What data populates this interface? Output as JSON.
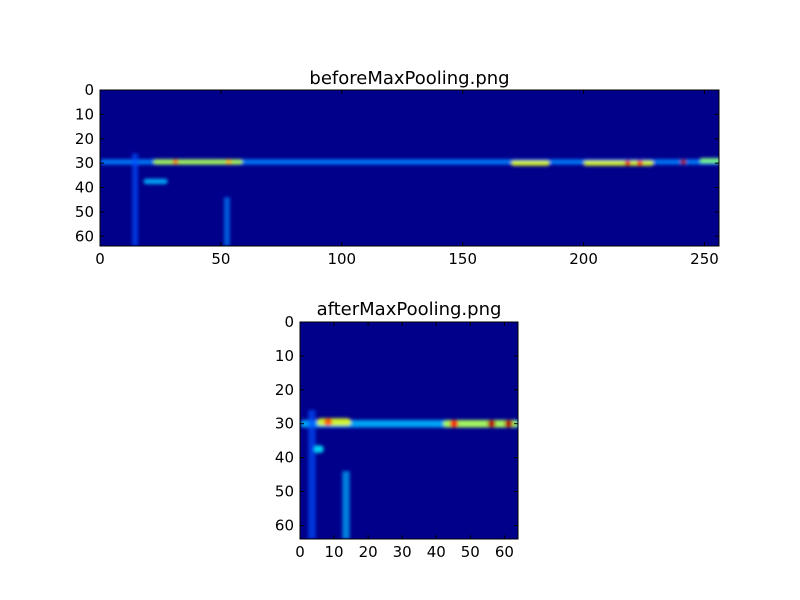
{
  "chart_data": [
    {
      "type": "heatmap",
      "title": "beforeMaxPooling.png",
      "colormap": "jet",
      "xlim": [
        0,
        256
      ],
      "ylim": [
        64,
        0
      ],
      "xticks": [
        "0",
        "50",
        "100",
        "150",
        "200",
        "250"
      ],
      "yticks": [
        "0",
        "10",
        "20",
        "30",
        "40",
        "50",
        "60"
      ],
      "background_color": "#00008b",
      "features": [
        {
          "x": [
            0,
            256
          ],
          "y": 29.5,
          "level": 0.25
        },
        {
          "x": [
            14,
            14
          ],
          "y": [
            26,
            64
          ],
          "level": 0.2
        },
        {
          "x": [
            52,
            52
          ],
          "y": [
            44,
            64
          ],
          "level": 0.25
        },
        {
          "x": [
            18,
            27
          ],
          "y": 37.5,
          "level": 0.3
        },
        {
          "x": [
            22,
            58
          ],
          "y": 29.5,
          "level": 0.55
        },
        {
          "x": [
            30,
            30
          ],
          "y": 29.5,
          "level": 0.75
        },
        {
          "x": [
            52,
            52
          ],
          "y": 29.5,
          "level": 0.7
        },
        {
          "x": [
            170,
            185
          ],
          "y": 30,
          "level": 0.6
        },
        {
          "x": [
            200,
            228
          ],
          "y": 30,
          "level": 0.6
        },
        {
          "x": [
            217,
            217
          ],
          "y": 30,
          "level": 0.9
        },
        {
          "x": [
            222,
            222
          ],
          "y": 30,
          "level": 0.85
        },
        {
          "x": [
            240,
            240
          ],
          "y": 29.5,
          "level": 0.95
        },
        {
          "x": [
            248,
            256
          ],
          "y": 29,
          "level": 0.5
        }
      ]
    },
    {
      "type": "heatmap",
      "title": "afterMaxPooling.png",
      "colormap": "jet",
      "xlim": [
        0,
        64
      ],
      "ylim": [
        64,
        0
      ],
      "xticks": [
        "0",
        "10",
        "20",
        "30",
        "40",
        "50",
        "60"
      ],
      "yticks": [
        "0",
        "10",
        "20",
        "30",
        "40",
        "50",
        "60"
      ],
      "background_color": "#00008b",
      "features": [
        {
          "x": [
            0,
            64
          ],
          "y": 30,
          "level": 0.3
        },
        {
          "x": [
            3,
            3
          ],
          "y": [
            26,
            64
          ],
          "level": 0.2
        },
        {
          "x": [
            13,
            13
          ],
          "y": [
            44,
            64
          ],
          "level": 0.3
        },
        {
          "x": [
            4,
            6
          ],
          "y": 37.5,
          "level": 0.35
        },
        {
          "x": [
            5,
            14
          ],
          "y": 29.5,
          "level": 0.6
        },
        {
          "x": [
            7,
            7
          ],
          "y": 29.5,
          "level": 0.8
        },
        {
          "x": [
            42,
            63
          ],
          "y": 30,
          "level": 0.55
        },
        {
          "x": [
            44,
            44
          ],
          "y": 30,
          "level": 0.85
        },
        {
          "x": [
            55,
            55
          ],
          "y": 30,
          "level": 0.95
        },
        {
          "x": [
            60,
            60
          ],
          "y": 30,
          "level": 0.95
        }
      ]
    }
  ]
}
